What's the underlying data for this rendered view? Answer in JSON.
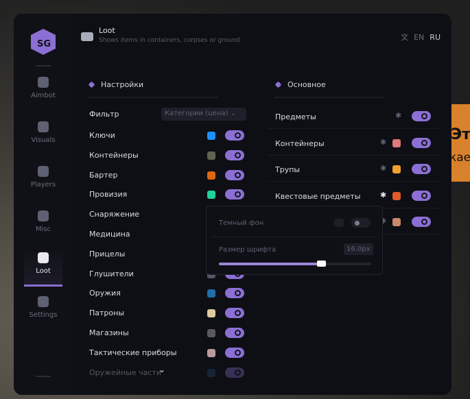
{
  "background": {
    "overlay_line1": "Эт",
    "overlay_line2": "кае"
  },
  "sidebar": {
    "items": [
      {
        "label": "Aimbot",
        "icon": "alien-icon"
      },
      {
        "label": "Visuals",
        "icon": "vr-headset-icon"
      },
      {
        "label": "Players",
        "icon": "users-icon"
      },
      {
        "label": "Misc",
        "icon": "dots-icon"
      },
      {
        "label": "Loot",
        "icon": "toolbox-icon",
        "active": true
      },
      {
        "label": "Settings",
        "icon": "list-icon"
      }
    ]
  },
  "header": {
    "title": "Loot",
    "subtitle": "Shows items in containers, corpses or ground",
    "lang": {
      "en": "EN",
      "ru": "RU",
      "active": "RU"
    }
  },
  "settings": {
    "title": "Настройки",
    "filter_label": "Фильтр",
    "filter_value": "Категории (цена)",
    "items": [
      {
        "label": "Ключи",
        "color": "#1e90ff",
        "on": true
      },
      {
        "label": "Контейнеры",
        "color": "#5f6350",
        "on": true
      },
      {
        "label": "Бартер",
        "color": "#e0650f",
        "on": true
      },
      {
        "label": "Провизия",
        "color": "#1fd39a",
        "on": true
      },
      {
        "label": "Снаряжение",
        "color": "#555866",
        "on": true
      },
      {
        "label": "Медицина",
        "color": "#555866",
        "on": true
      },
      {
        "label": "Прицелы",
        "color": "#555866",
        "on": true
      },
      {
        "label": "Глушители",
        "color": "#555866",
        "on": true
      },
      {
        "label": "Оружия",
        "color": "#1f6ea8",
        "on": true
      },
      {
        "label": "Патроны",
        "color": "#dcc9a0",
        "on": true
      },
      {
        "label": "Магазины",
        "color": "#5a5a5e",
        "on": true
      },
      {
        "label": "Тактические приборы",
        "color": "#b89ba0",
        "on": true
      },
      {
        "label": "Оружейные части",
        "color": "#1d4f7a",
        "on": true
      }
    ]
  },
  "main": {
    "title": "Основное",
    "items": [
      {
        "label": "Предметы",
        "color": null,
        "on": true
      },
      {
        "label": "Контейнеры",
        "color": "#e07878",
        "on": true
      },
      {
        "label": "Трупы",
        "color": "#f0a030",
        "on": true
      },
      {
        "label": "Квестовые предметы",
        "color": "#e05a28",
        "on": true
      },
      {
        "label": "",
        "color": "#c98a68",
        "on": true
      }
    ]
  },
  "popup": {
    "dark_bg_label": "Темный фон",
    "dark_bg_on": false,
    "font_size_label": "Размер шрифта",
    "font_size_value": "16.0px",
    "font_size_fraction": 0.67
  }
}
